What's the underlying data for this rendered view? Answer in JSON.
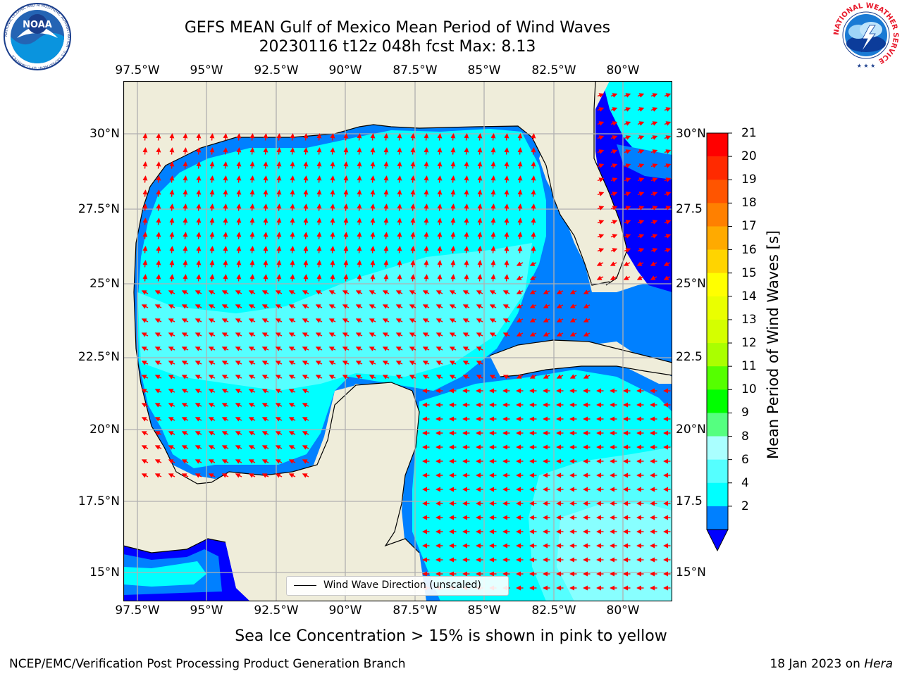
{
  "title_line1": "GEFS MEAN Gulf of Mexico Mean Period of Wind Waves",
  "title_line2": "20230116 t12z 048h fcst   Max: 8.13",
  "lon_labels": [
    "97.5°W",
    "95°W",
    "92.5°W",
    "90°W",
    "87.5°W",
    "85°W",
    "82.5°W",
    "80°W"
  ],
  "lat_labels_left": [
    "30°N",
    "27.5°N",
    "25°N",
    "22.5°N",
    "20°N",
    "17.5°N",
    "15°N"
  ],
  "lat_labels_right": [
    "30°N",
    "27.5",
    "25°N",
    "22.5",
    "20°N",
    "17.5",
    "15°N"
  ],
  "legend_label": "Wind Wave Direction (unscaled)",
  "colorbar": {
    "title": "Mean Period of Wind Waves [s]",
    "ticks": [
      "21",
      "20",
      "19",
      "18",
      "17",
      "16",
      "15",
      "14",
      "13",
      "12",
      "11",
      "10",
      "9",
      "8",
      "6",
      "4",
      "2"
    ],
    "colors": [
      "#ff0000",
      "#ff2a00",
      "#ff5500",
      "#ff8000",
      "#ffaa00",
      "#ffd400",
      "#ffff00",
      "#eaff00",
      "#d4ff00",
      "#aaff00",
      "#55ff00",
      "#00ff00",
      "#55ff80",
      "#aaffff",
      "#55ffff",
      "#00ffff",
      "#0080ff"
    ],
    "extend_color": "#0000ff"
  },
  "ice_note": "Sea Ice Concentration > 15% is shown in pink to yellow",
  "footer_left": "NCEP/EMC/Verification Post Processing Product Generation Branch",
  "footer_right_date": "18 Jan 2023 on ",
  "footer_right_machine": "Hera",
  "logos": {
    "noaa_text": "NOAA",
    "noaa_ring": "NATIONAL OCEANIC AND ATMOSPHERIC ADMINISTRATION · U.S. DEPARTMENT OF COMMERCE",
    "nws_ring": "NATIONAL WEATHER SERVICE"
  },
  "colors": {
    "land": "#efedda",
    "ocean_light": "#55ffff",
    "ocean_cyan": "#00ffff",
    "ocean_mid": "#0080ff",
    "ocean_dark": "#0000ff",
    "arrow": "#ff0000"
  }
}
